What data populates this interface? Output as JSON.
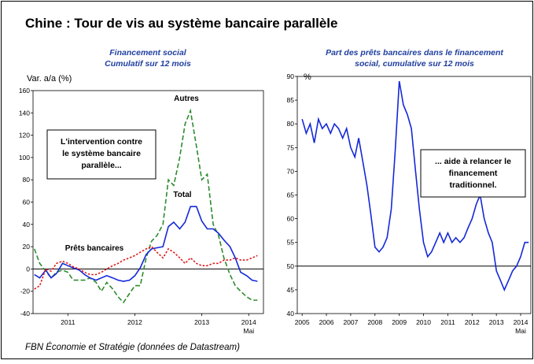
{
  "title": "Chine : Tour de vis au système bancaire parallèle",
  "footer": "FBN Économie et Stratégie (données de Datastream)",
  "chart_data": [
    {
      "type": "line",
      "subtitle": [
        "Financement social",
        "Cumulatif sur 12 mois"
      ],
      "y_label": "Var. a/a (%)",
      "x_end_label": "Mai",
      "xlim": [
        2010.98,
        2014.42
      ],
      "xticks": [
        {
          "value": 2011.5,
          "label": "2011"
        },
        {
          "value": 2012.5,
          "label": "2012"
        },
        {
          "value": 2013.5,
          "label": "2013"
        },
        {
          "value": 2014.2,
          "label": "2014"
        }
      ],
      "ylim": [
        -40,
        160
      ],
      "yticks": [
        -40,
        -20,
        0,
        20,
        40,
        60,
        80,
        100,
        120,
        140,
        160
      ],
      "refline": 0,
      "x": [
        2011.0,
        2011.08,
        2011.17,
        2011.25,
        2011.33,
        2011.42,
        2011.5,
        2011.58,
        2011.67,
        2011.75,
        2011.83,
        2011.92,
        2012.0,
        2012.08,
        2012.17,
        2012.25,
        2012.33,
        2012.42,
        2012.5,
        2012.58,
        2012.67,
        2012.75,
        2012.83,
        2012.92,
        2013.0,
        2013.08,
        2013.17,
        2013.25,
        2013.33,
        2013.42,
        2013.5,
        2013.58,
        2013.67,
        2013.75,
        2013.83,
        2013.92,
        2014.0,
        2014.08,
        2014.17,
        2014.25,
        2014.33
      ],
      "series": [
        {
          "name": "Autres",
          "color": "#2e8b2e",
          "style": "dashed",
          "values": [
            18,
            5,
            -2,
            -8,
            -3,
            -1,
            -3,
            -10,
            -10,
            -10,
            -8,
            -12,
            -20,
            -12,
            -18,
            -25,
            -30,
            -22,
            -15,
            -15,
            10,
            25,
            30,
            40,
            80,
            75,
            100,
            130,
            142,
            110,
            80,
            85,
            40,
            30,
            10,
            -5,
            -15,
            -20,
            -25,
            -28,
            -28
          ]
        },
        {
          "name": "Total",
          "color": "#1428d8",
          "style": "solid",
          "values": [
            -5,
            -8,
            -1,
            -8,
            -4,
            5,
            3,
            1,
            -1,
            -5,
            -8,
            -10,
            -8,
            -6,
            -8,
            -10,
            -11,
            -10,
            -6,
            1,
            13,
            18,
            19,
            20,
            38,
            42,
            36,
            42,
            56,
            56,
            43,
            36,
            36,
            32,
            26,
            20,
            10,
            -3,
            -6,
            -10,
            -11
          ]
        },
        {
          "name": "Prêts bancaires",
          "color": "#e01818",
          "style": "dotted",
          "values": [
            -18,
            -15,
            0,
            -2,
            5,
            7,
            5,
            2,
            0,
            -3,
            -5,
            -5,
            -3,
            0,
            3,
            5,
            8,
            10,
            12,
            15,
            18,
            20,
            15,
            10,
            18,
            15,
            10,
            5,
            10,
            5,
            3,
            3,
            5,
            5,
            8,
            8,
            10,
            8,
            8,
            10,
            12
          ]
        }
      ],
      "annotation": [
        "L'intervention contre",
        "le système bancaire",
        "parallèle..."
      ]
    },
    {
      "type": "line",
      "subtitle": [
        "Part des prêts bancaires dans le financement",
        "social, cumulative sur 12 mois"
      ],
      "y_label": "%",
      "x_end_label": "Mai",
      "xlim": [
        2004.8,
        2014.42
      ],
      "xticks": [
        2005,
        2006,
        2007,
        2008,
        2009,
        2010,
        2011,
        2012,
        2013,
        2014
      ],
      "ylim": [
        40,
        90
      ],
      "yticks": [
        40,
        45,
        50,
        55,
        60,
        65,
        70,
        75,
        80,
        85,
        90
      ],
      "refline": 50,
      "x": [
        2005.0,
        2005.17,
        2005.33,
        2005.5,
        2005.67,
        2005.83,
        2006.0,
        2006.17,
        2006.33,
        2006.5,
        2006.67,
        2006.83,
        2007.0,
        2007.17,
        2007.33,
        2007.5,
        2007.67,
        2007.83,
        2008.0,
        2008.17,
        2008.33,
        2008.5,
        2008.67,
        2008.83,
        2009.0,
        2009.17,
        2009.33,
        2009.5,
        2009.67,
        2009.83,
        2010.0,
        2010.17,
        2010.33,
        2010.5,
        2010.67,
        2010.83,
        2011.0,
        2011.17,
        2011.33,
        2011.5,
        2011.67,
        2011.83,
        2012.0,
        2012.17,
        2012.33,
        2012.5,
        2012.67,
        2012.83,
        2013.0,
        2013.17,
        2013.33,
        2013.5,
        2013.67,
        2013.83,
        2014.0,
        2014.17,
        2014.33
      ],
      "series": [
        {
          "color": "#1428d8",
          "style": "solid",
          "values": [
            81,
            78,
            80,
            76,
            81,
            79,
            80,
            78,
            80,
            79,
            77,
            79,
            75,
            73,
            77,
            72,
            67,
            61,
            54,
            53,
            54,
            56,
            62,
            74,
            89,
            84,
            82,
            79,
            70,
            62,
            55,
            52,
            53,
            55,
            57,
            55,
            57,
            55,
            56,
            55,
            56,
            58,
            60,
            63,
            65,
            60,
            57,
            55,
            49,
            47,
            45,
            47,
            49,
            50,
            52,
            55,
            55
          ]
        }
      ],
      "annotation": [
        "... aide à relancer le",
        "financement",
        "traditionnel."
      ]
    }
  ]
}
